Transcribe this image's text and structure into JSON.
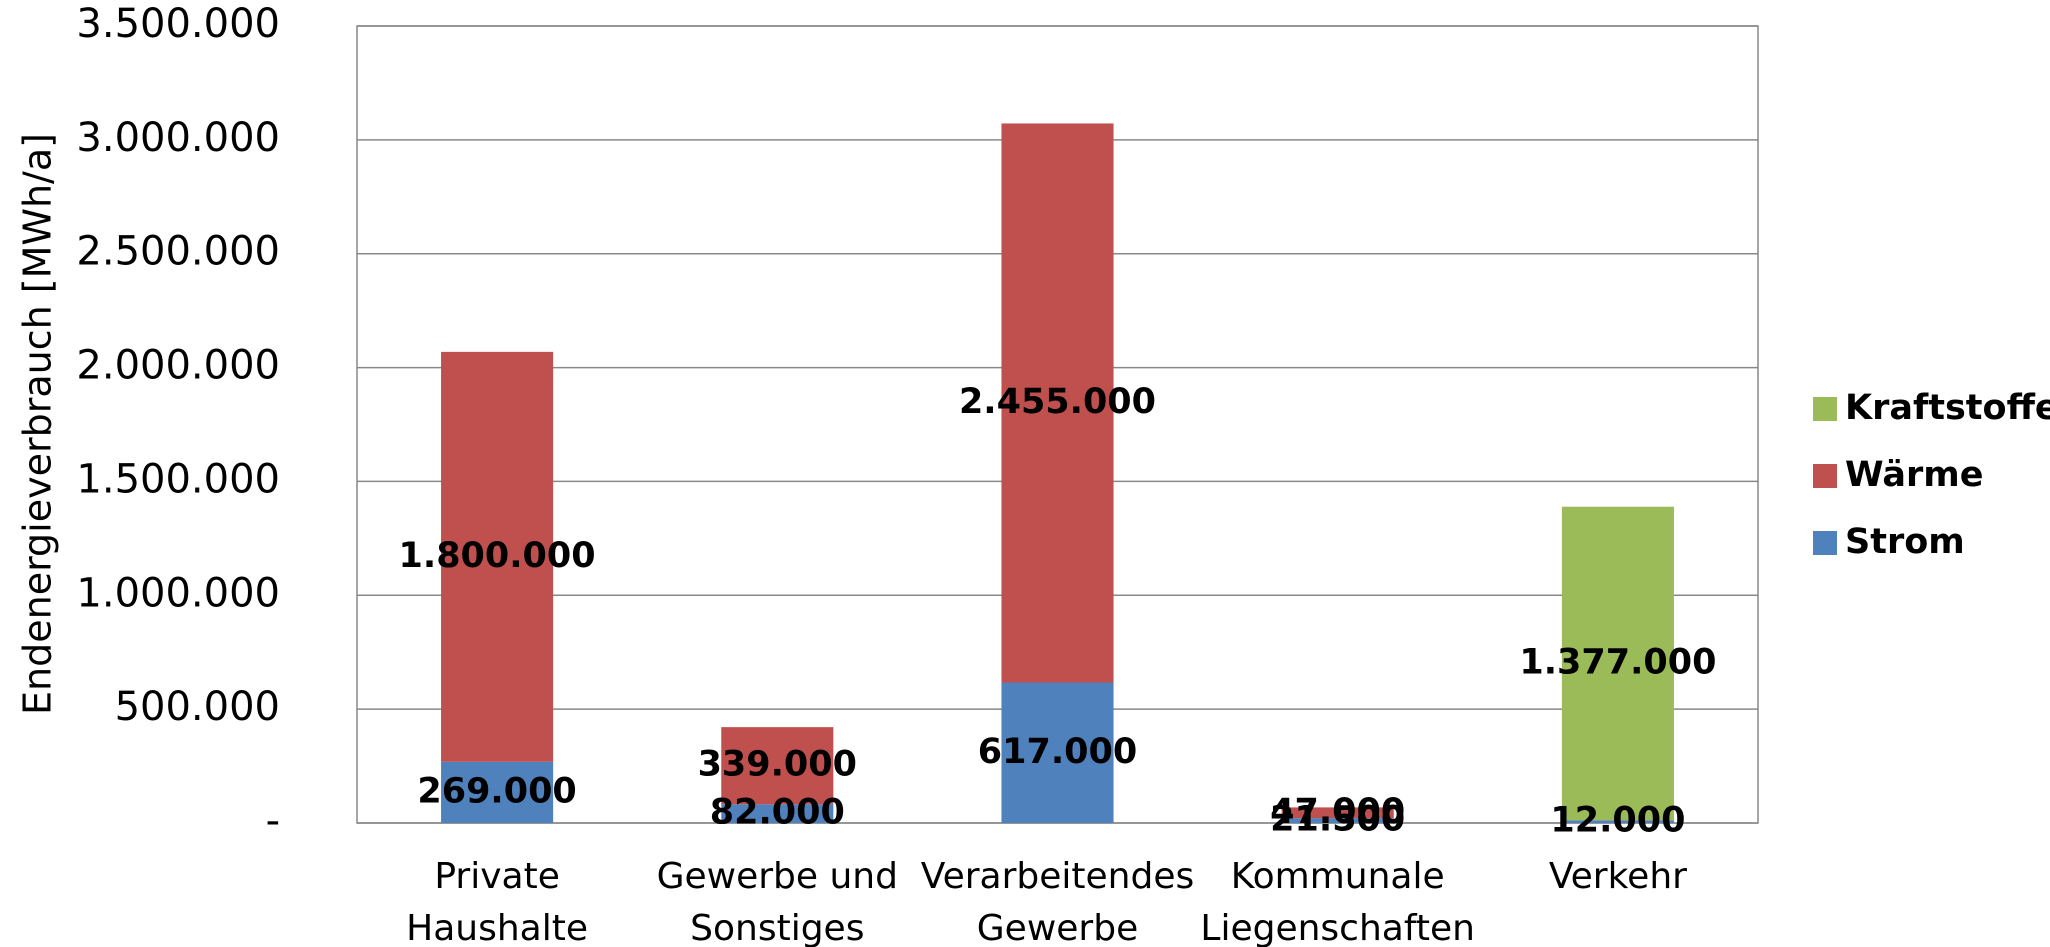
{
  "chart_data": {
    "type": "stacked_bar",
    "y_axis_label": "Endenergieverbrauch [MWh/a]",
    "categories": [
      "Private Haushalte",
      "Gewerbe und Sonstiges",
      "Verarbeitendes Gewerbe",
      "Kommunale Liegenschaften",
      "Verkehr"
    ],
    "series": [
      {
        "name": "Strom",
        "color": "#4f81bd",
        "values": [
          269000,
          82000,
          617000,
          21500,
          12000
        ],
        "value_labels": [
          "269.000",
          "82.000",
          "617.000",
          "21.500",
          "12.000"
        ]
      },
      {
        "name": "Wärme",
        "color": "#c0504d",
        "values": [
          1800000,
          339000,
          2455000,
          47000,
          null
        ],
        "value_labels": [
          "1.800.000",
          "339.000",
          "2.455.000",
          "47.000",
          null
        ]
      },
      {
        "name": "Kraftstoffe",
        "color": "#9bbb59",
        "values": [
          null,
          null,
          null,
          null,
          1377000
        ],
        "value_labels": [
          null,
          null,
          null,
          null,
          "1.377.000"
        ]
      }
    ],
    "ylim": [
      0,
      3500000
    ],
    "yticks": [
      {
        "value": 0,
        "label": "-"
      },
      {
        "value": 500000,
        "label": "500.000"
      },
      {
        "value": 1000000,
        "label": "1.000.000"
      },
      {
        "value": 1500000,
        "label": "1.500.000"
      },
      {
        "value": 2000000,
        "label": "2.000.000"
      },
      {
        "value": 2500000,
        "label": "2.500.000"
      },
      {
        "value": 3000000,
        "label": "3.000.000"
      },
      {
        "value": 3500000,
        "label": "3.500.000"
      }
    ],
    "grid": true,
    "legend": "right"
  }
}
